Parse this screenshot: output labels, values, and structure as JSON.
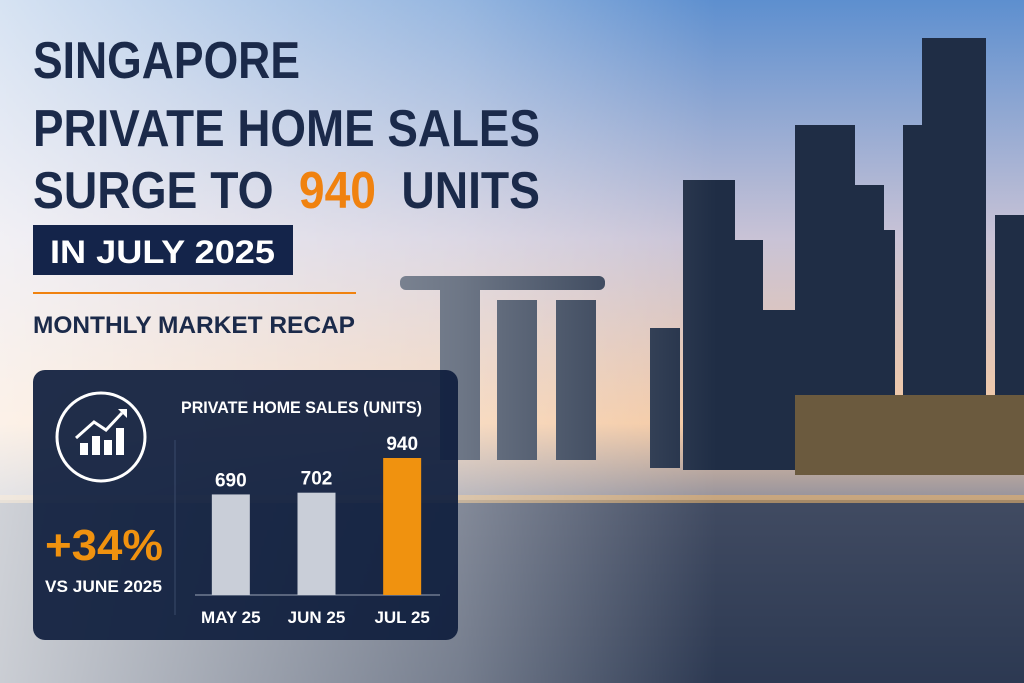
{
  "headline": {
    "line1": "SINGAPORE",
    "line2": "PRIVATE HOME SALES",
    "line3_start": "SURGE TO",
    "line3_number": "940",
    "line3_end": "UNITS",
    "badge": "IN JULY 2025",
    "subtitle": "MONTHLY MARKET RECAP"
  },
  "stat": {
    "change": "+34%",
    "label": "VS JUNE 2025"
  },
  "chart_data": {
    "type": "bar",
    "title": "PRIVATE HOME SALES (UNITS)",
    "categories": [
      "MAY 25",
      "JUN 25",
      "JUL 25"
    ],
    "values": [
      690,
      702,
      940
    ],
    "colors": [
      "#c9ced8",
      "#c9ced8",
      "#f0920f"
    ]
  }
}
